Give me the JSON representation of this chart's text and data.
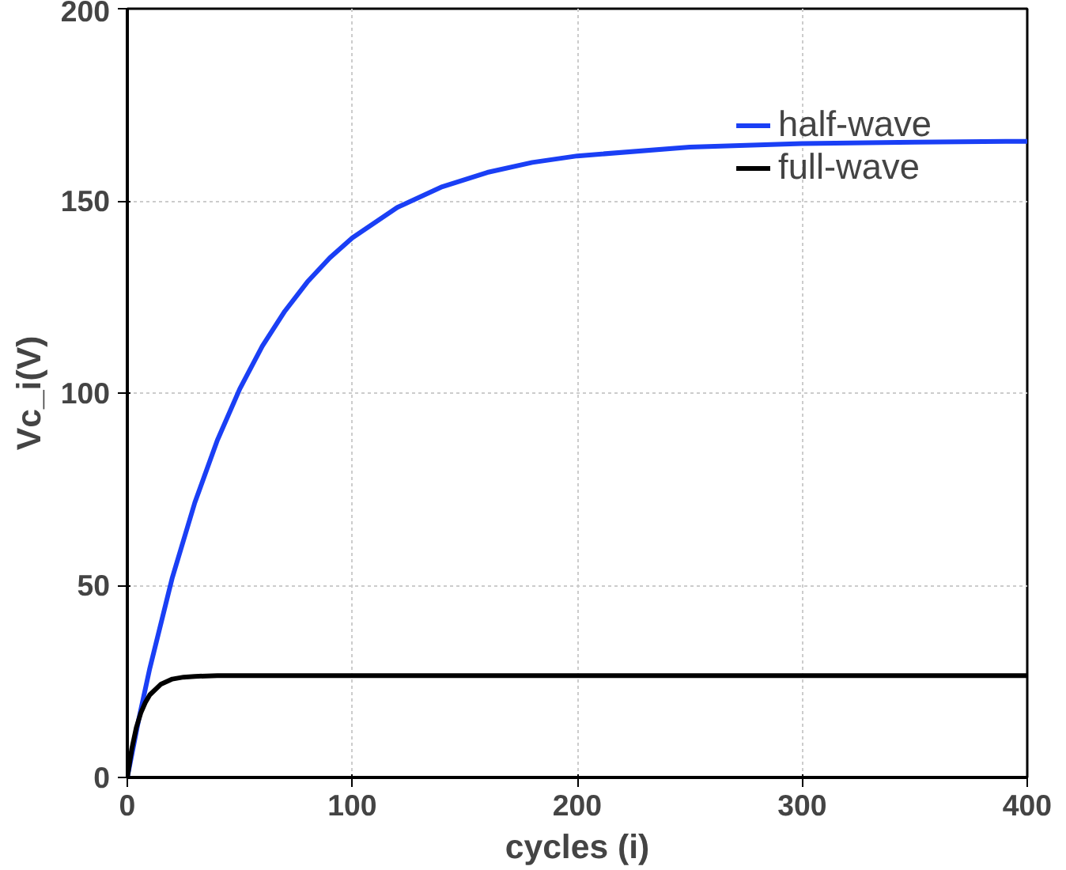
{
  "chart_data": {
    "type": "line",
    "xlabel": "cycles (i)",
    "ylabel": "Vc_i(V)",
    "xlim": [
      0,
      400
    ],
    "xticks": [
      0,
      100,
      200,
      300,
      400
    ],
    "ylim": [
      0,
      200
    ],
    "yticks": [
      0,
      50,
      100,
      150,
      200
    ],
    "grid": true,
    "legend": "top right",
    "marker": "none",
    "line_style": "solid",
    "series": [
      {
        "name": "half-wave",
        "color": "#1a3ff5",
        "x": [
          0,
          5,
          10,
          20,
          30,
          40,
          50,
          60,
          70,
          80,
          90,
          100,
          120,
          140,
          160,
          180,
          200,
          250,
          300,
          350,
          400
        ],
        "values": [
          0,
          14.9,
          28.4,
          52.0,
          71.5,
          87.7,
          101.1,
          112.2,
          121.3,
          128.9,
          135.2,
          140.4,
          148.3,
          153.7,
          157.4,
          160.0,
          161.7,
          164.0,
          164.9,
          165.3,
          165.5
        ]
      },
      {
        "name": "full-wave",
        "color": "#000000",
        "x": [
          0,
          2,
          4,
          6,
          8,
          10,
          15,
          20,
          25,
          30,
          40,
          100,
          200,
          300,
          400
        ],
        "values": [
          0,
          7.5,
          13.0,
          16.8,
          19.5,
          21.5,
          24.3,
          25.6,
          26.1,
          26.3,
          26.5,
          26.5,
          26.5,
          26.5,
          26.5
        ]
      }
    ]
  }
}
